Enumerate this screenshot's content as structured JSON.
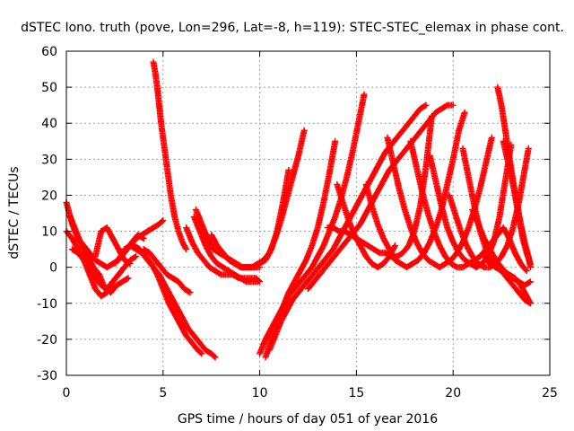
{
  "chart_data": {
    "type": "scatter",
    "title": "dSTEC Iono. truth (pove, Lon=296, Lat=-8, h=119): STEC-STEC_elemax in phase cont.",
    "xlabel": "GPS time / hours of day 051 of year 2016",
    "ylabel": "dSTEC  / TECUs",
    "xlim": [
      0,
      25
    ],
    "ylim": [
      -30,
      60
    ],
    "xticks": [
      0,
      5,
      10,
      15,
      20,
      25
    ],
    "yticks": [
      -30,
      -20,
      -10,
      0,
      10,
      20,
      30,
      40,
      50,
      60
    ],
    "grid": true,
    "marker": "plus",
    "color": "#ff0000",
    "series": [
      {
        "x": [
          0.0,
          0.3,
          0.6,
          0.9,
          1.2,
          1.5,
          1.8,
          2.1,
          2.4,
          2.7,
          3.0,
          3.3,
          3.6,
          3.9,
          4.2,
          4.5,
          4.8,
          5.0
        ],
        "y": [
          18,
          12,
          8,
          6,
          4,
          2,
          1,
          0,
          1,
          2,
          4,
          6,
          8,
          9,
          10,
          11,
          12,
          13
        ]
      },
      {
        "x": [
          0.0,
          0.3,
          0.6,
          0.9,
          1.2,
          1.5,
          1.8,
          2.1,
          2.4,
          2.7,
          3.0,
          3.3,
          3.6
        ],
        "y": [
          10,
          8,
          5,
          2,
          0,
          -3,
          -5,
          -6,
          -4,
          -2,
          0,
          2,
          3
        ]
      },
      {
        "x": [
          0.2,
          0.5,
          0.8,
          1.1,
          1.4,
          1.7,
          2.0,
          2.3,
          2.6,
          2.9,
          3.2
        ],
        "y": [
          14,
          10,
          6,
          3,
          0,
          -2,
          -6,
          -7,
          -5,
          -4,
          -3
        ]
      },
      {
        "x": [
          0.3,
          0.6,
          0.9,
          1.2,
          1.5,
          1.8,
          2.1,
          2.4,
          2.7,
          3.0
        ],
        "y": [
          5,
          4,
          2,
          -2,
          -6,
          -8,
          -7,
          -4,
          -2,
          0
        ]
      },
      {
        "x": [
          1.5,
          1.8,
          2.1,
          2.4,
          2.7,
          3.0,
          3.3
        ],
        "y": [
          3,
          10,
          11,
          8,
          5,
          2,
          1
        ]
      },
      {
        "x": [
          2.5,
          2.8,
          3.1,
          3.4,
          3.7,
          4.0
        ],
        "y": [
          1,
          3,
          5,
          7,
          9,
          8
        ]
      },
      {
        "x": [
          3.0,
          3.3,
          3.6,
          3.9,
          4.2,
          4.5,
          4.8,
          5.1,
          5.4,
          5.7,
          6.0,
          6.3,
          6.6,
          6.9,
          7.2,
          7.5,
          7.7
        ],
        "y": [
          5,
          6,
          5,
          4,
          2,
          0,
          -2,
          -5,
          -8,
          -11,
          -14,
          -17,
          -19,
          -21,
          -23,
          -24,
          -25
        ]
      },
      {
        "x": [
          3.5,
          3.8,
          4.1,
          4.4,
          4.7,
          5.0,
          5.3,
          5.6,
          5.9,
          6.2,
          6.5,
          6.8,
          7.0
        ],
        "y": [
          6,
          5,
          3,
          1,
          -2,
          -6,
          -10,
          -13,
          -16,
          -19,
          -21,
          -23,
          -24
        ]
      },
      {
        "x": [
          4.0,
          4.3,
          4.6,
          4.9,
          5.2,
          5.5,
          5.8,
          6.1,
          6.4
        ],
        "y": [
          5,
          4,
          2,
          0,
          -2,
          -3,
          -4,
          -6,
          -7
        ]
      },
      {
        "x": [
          4.5,
          4.6,
          4.7,
          4.8,
          4.9,
          5.0,
          5.1,
          5.2,
          5.3,
          5.4,
          5.5,
          5.6,
          5.8,
          6.0,
          6.2
        ],
        "y": [
          57,
          54,
          50,
          45,
          40,
          36,
          32,
          28,
          24,
          20,
          17,
          14,
          10,
          7,
          5
        ]
      },
      {
        "x": [
          6.7,
          7.0,
          7.3,
          7.6,
          7.9,
          8.2,
          8.5,
          8.8,
          9.1,
          9.4,
          9.7,
          10.0
        ],
        "y": [
          16,
          12,
          8,
          5,
          4,
          3,
          2,
          1,
          0,
          0,
          0,
          0
        ]
      },
      {
        "x": [
          6.2,
          6.5,
          6.8,
          7.1,
          7.4,
          7.7,
          8.0,
          8.3,
          8.6,
          8.9,
          9.2,
          9.5,
          9.8,
          10.0
        ],
        "y": [
          11,
          7,
          4,
          2,
          0,
          -1,
          -2,
          -2,
          -2,
          -3,
          -3,
          -3,
          -3,
          -4
        ]
      },
      {
        "x": [
          6.6,
          6.9,
          7.2,
          7.5,
          7.8,
          8.1,
          8.4,
          8.7,
          9.0,
          9.3,
          9.6,
          9.9
        ],
        "y": [
          14,
          10,
          6,
          3,
          1,
          0,
          -1,
          -2,
          -3,
          -4,
          -4,
          -4
        ]
      },
      {
        "x": [
          7.5,
          7.8,
          8.1,
          8.4,
          8.7,
          9.0,
          9.3,
          9.6,
          9.9,
          10.2,
          10.5,
          10.8,
          11.1,
          11.4,
          11.7,
          12.0,
          12.3
        ],
        "y": [
          9,
          6,
          4,
          2,
          1,
          0,
          0,
          0,
          1,
          2,
          4,
          8,
          13,
          19,
          25,
          31,
          38
        ]
      },
      {
        "x": [
          8.5,
          8.8,
          9.1,
          9.4,
          9.7,
          10.0,
          10.3,
          10.6,
          10.9,
          11.2,
          11.5
        ],
        "y": [
          2,
          1,
          0,
          0,
          0,
          1,
          2,
          5,
          10,
          18,
          27
        ]
      },
      {
        "x": [
          10.0,
          10.3,
          10.6,
          10.9,
          11.2,
          11.5,
          11.8,
          12.1,
          12.4,
          12.7,
          13.0,
          13.3,
          13.6,
          13.9,
          14.2,
          14.5,
          14.8,
          15.1,
          15.4
        ],
        "y": [
          -24,
          -20,
          -17,
          -14,
          -11,
          -8,
          -6,
          -4,
          -2,
          0,
          3,
          6,
          10,
          14,
          19,
          25,
          32,
          40,
          48
        ]
      },
      {
        "x": [
          10.3,
          10.6,
          10.9,
          11.2,
          11.5,
          11.8,
          12.1,
          12.4,
          12.7,
          13.0,
          13.3,
          13.6,
          13.9
        ],
        "y": [
          -25,
          -20,
          -15,
          -11,
          -7,
          -4,
          -1,
          2,
          6,
          11,
          18,
          26,
          35
        ]
      },
      {
        "x": [
          10.5,
          10.8,
          11.1,
          11.4,
          11.7,
          12.0,
          12.3,
          12.6,
          12.9,
          13.2,
          13.5,
          13.8,
          14.1,
          14.4,
          14.7,
          15.0,
          15.3,
          15.6,
          15.9,
          16.2,
          16.5,
          16.8,
          17.1,
          17.4,
          17.7,
          18.0,
          18.3,
          18.6
        ],
        "y": [
          -23,
          -19,
          -15,
          -12,
          -9,
          -7,
          -5,
          -3,
          -1,
          1,
          3,
          5,
          8,
          11,
          14,
          17,
          20,
          23,
          26,
          29,
          32,
          34,
          36,
          38,
          40,
          42,
          44,
          45
        ]
      },
      {
        "x": [
          12.5,
          12.8,
          13.1,
          13.4,
          13.7,
          14.0,
          14.3,
          14.6,
          14.9,
          15.2,
          15.5,
          15.8,
          16.1,
          16.4,
          16.7,
          17.0,
          17.3,
          17.6,
          17.9,
          18.2,
          18.5,
          18.8,
          19.1,
          19.4,
          19.7,
          20.0
        ],
        "y": [
          -6,
          -4,
          -2,
          0,
          2,
          4,
          6,
          8,
          10,
          12,
          15,
          18,
          21,
          24,
          27,
          29,
          31,
          33,
          35,
          37,
          39,
          41,
          43,
          44,
          45,
          45
        ]
      },
      {
        "x": [
          14.0,
          14.3,
          14.6,
          14.9,
          15.2,
          15.5,
          15.8,
          16.1,
          16.4,
          16.7,
          17.0
        ],
        "y": [
          23,
          18,
          13,
          9,
          6,
          3,
          1,
          0,
          1,
          3,
          6
        ]
      },
      {
        "x": [
          13.5,
          13.8,
          14.1,
          14.4,
          14.7,
          15.0,
          15.3,
          15.6,
          15.9,
          16.2,
          16.5,
          16.8,
          17.1,
          17.4,
          17.7,
          18.0,
          18.3,
          18.6,
          18.9
        ],
        "y": [
          11,
          11,
          10,
          10,
          9,
          8,
          7,
          6,
          5,
          4,
          4,
          3,
          3,
          4,
          6,
          10,
          17,
          28,
          42
        ]
      },
      {
        "x": [
          15.5,
          15.8,
          16.1,
          16.4,
          16.7,
          17.0,
          17.3,
          17.6,
          17.9,
          18.2,
          18.5,
          18.8,
          19.1,
          19.4,
          19.7,
          20.0,
          20.3,
          20.6
        ],
        "y": [
          23,
          17,
          12,
          8,
          5,
          2,
          1,
          0,
          1,
          2,
          4,
          7,
          11,
          16,
          23,
          30,
          38,
          43
        ]
      },
      {
        "x": [
          16.6,
          16.9,
          17.2,
          17.5,
          17.8,
          18.1,
          18.4,
          18.7,
          19.0,
          19.3,
          19.6,
          19.9,
          20.2,
          20.5,
          20.8,
          21.1,
          21.4,
          21.7,
          22.0
        ],
        "y": [
          36,
          29,
          22,
          16,
          11,
          7,
          4,
          2,
          1,
          0,
          1,
          2,
          4,
          7,
          11,
          16,
          22,
          29,
          36
        ]
      },
      {
        "x": [
          17.8,
          18.1,
          18.4,
          18.7,
          19.0,
          19.3,
          19.6,
          19.9,
          20.2,
          20.5,
          20.8,
          21.1,
          21.4,
          21.7,
          22.0,
          22.3,
          22.6,
          22.9,
          23.2,
          23.5,
          23.8
        ],
        "y": [
          35,
          28,
          21,
          15,
          10,
          6,
          3,
          1,
          0,
          0,
          1,
          2,
          3,
          5,
          7,
          9,
          11,
          8,
          4,
          1,
          -1
        ]
      },
      {
        "x": [
          18.8,
          19.1,
          19.4,
          19.7,
          20.0,
          20.3,
          20.6,
          20.9,
          21.2,
          21.5,
          21.8,
          22.1,
          22.4,
          22.7,
          23.0
        ],
        "y": [
          31,
          24,
          17,
          11,
          7,
          4,
          2,
          1,
          0,
          1,
          3,
          7,
          14,
          24,
          34
        ]
      },
      {
        "x": [
          19.8,
          20.1,
          20.4,
          20.7,
          21.0,
          21.3,
          21.6,
          21.9,
          22.2,
          22.5,
          22.8,
          23.1,
          23.4,
          23.7,
          23.9
        ],
        "y": [
          20,
          15,
          10,
          6,
          3,
          1,
          0,
          0,
          1,
          3,
          6,
          11,
          18,
          27,
          33
        ]
      },
      {
        "x": [
          20.5,
          20.8,
          21.1,
          21.4,
          21.7,
          22.0,
          22.3,
          22.6,
          22.9,
          23.2,
          23.5,
          23.8,
          24.0
        ],
        "y": [
          33,
          25,
          17,
          10,
          5,
          2,
          0,
          -1,
          -2,
          -3,
          -5,
          -8,
          -10
        ]
      },
      {
        "x": [
          22.3,
          22.5,
          22.7,
          22.9,
          23.1,
          23.3,
          23.5,
          23.7,
          23.9,
          24.0
        ],
        "y": [
          50,
          45,
          38,
          31,
          24,
          18,
          12,
          7,
          3,
          0
        ]
      },
      {
        "x": [
          21.0,
          21.3,
          21.6,
          21.9,
          22.2,
          22.5,
          22.8,
          23.1,
          23.4,
          23.7,
          24.0
        ],
        "y": [
          16,
          12,
          8,
          5,
          2,
          0,
          -2,
          -3,
          -4,
          -5,
          -4
        ]
      },
      {
        "x": [
          21.6,
          21.9,
          22.2,
          22.5,
          22.8,
          23.1,
          23.4,
          23.7,
          24.0
        ],
        "y": [
          3,
          1,
          0,
          -1,
          -3,
          -5,
          -7,
          -9,
          -10
        ]
      },
      {
        "x": [
          22.6,
          22.8,
          23.0,
          23.2,
          23.4,
          23.6,
          23.8,
          24.0
        ],
        "y": [
          35,
          30,
          26,
          20,
          14,
          8,
          4,
          1
        ]
      }
    ]
  }
}
